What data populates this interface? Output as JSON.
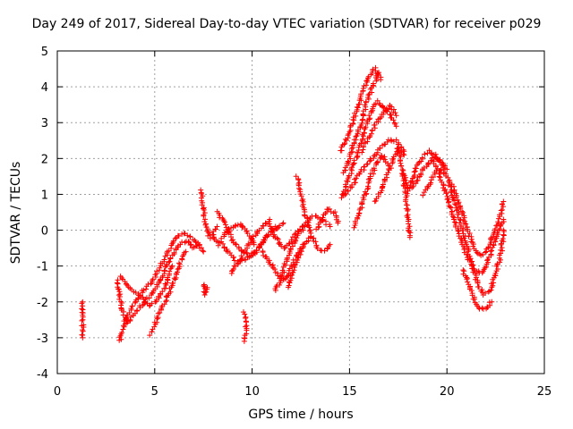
{
  "chart_data": {
    "type": "scatter",
    "title": "Day 249 of 2017, Sidereal Day-to-day VTEC variation (SDTVAR) for receiver p029",
    "xlabel": "GPS time / hours",
    "ylabel": "SDTVAR / TECUs",
    "xlim": [
      0,
      25
    ],
    "ylim": [
      -4,
      5
    ],
    "xticks": [
      0,
      5,
      10,
      15,
      20,
      25
    ],
    "yticks": [
      -4,
      -3,
      -2,
      -1,
      0,
      1,
      2,
      3,
      4,
      5
    ],
    "xtick_labels": [
      "0",
      "5",
      "10",
      "15",
      "20",
      "25"
    ],
    "ytick_labels": [
      "-4",
      "-3",
      "-2",
      "-1",
      "0",
      "1",
      "2",
      "3",
      "4",
      "5"
    ],
    "grid": true,
    "marker": "+",
    "color": "#ff0000",
    "series": [
      {
        "name": "p029",
        "tracks": [
          [
            [
              1.3,
              -2.0
            ],
            [
              1.3,
              -2.5
            ],
            [
              1.3,
              -3.0
            ]
          ],
          [
            [
              3.1,
              -1.4
            ],
            [
              3.3,
              -2.2
            ],
            [
              3.6,
              -2.6
            ],
            [
              4.0,
              -2.3
            ],
            [
              4.5,
              -2.0
            ],
            [
              5.0,
              -1.7
            ],
            [
              5.4,
              -1.3
            ],
            [
              5.8,
              -0.8
            ],
            [
              6.2,
              -0.4
            ],
            [
              6.7,
              -0.3
            ],
            [
              7.0,
              -0.5
            ],
            [
              7.3,
              -0.4
            ]
          ],
          [
            [
              3.2,
              -3.1
            ],
            [
              3.5,
              -2.5
            ],
            [
              3.9,
              -2.1
            ],
            [
              4.4,
              -1.7
            ],
            [
              4.9,
              -1.4
            ],
            [
              5.3,
              -1.0
            ],
            [
              5.7,
              -0.6
            ],
            [
              6.1,
              -0.2
            ],
            [
              6.6,
              -0.1
            ],
            [
              7.1,
              -0.3
            ],
            [
              7.5,
              -0.6
            ]
          ],
          [
            [
              3.3,
              -1.3
            ],
            [
              3.7,
              -1.6
            ],
            [
              4.2,
              -1.8
            ],
            [
              4.7,
              -2.1
            ],
            [
              5.1,
              -2.0
            ],
            [
              5.5,
              -1.6
            ],
            [
              5.9,
              -1.0
            ]
          ],
          [
            [
              4.8,
              -2.9
            ],
            [
              5.2,
              -2.4
            ],
            [
              5.6,
              -1.9
            ],
            [
              6.0,
              -1.4
            ],
            [
              6.3,
              -0.9
            ],
            [
              6.6,
              -0.6
            ]
          ],
          [
            [
              7.4,
              1.1
            ],
            [
              7.5,
              0.6
            ],
            [
              7.6,
              0.2
            ],
            [
              7.8,
              -0.2
            ],
            [
              8.0,
              -0.1
            ],
            [
              8.2,
              0.1
            ]
          ],
          [
            [
              7.5,
              -1.5
            ],
            [
              7.6,
              -1.8
            ],
            [
              7.7,
              -1.6
            ]
          ],
          [
            [
              8.0,
              -0.2
            ],
            [
              8.3,
              -0.4
            ],
            [
              8.6,
              -0.1
            ],
            [
              9.0,
              0.1
            ],
            [
              9.4,
              0.2
            ],
            [
              9.8,
              -0.1
            ],
            [
              10.1,
              -0.4
            ]
          ],
          [
            [
              8.2,
              0.5
            ],
            [
              8.6,
              0.2
            ],
            [
              9.0,
              -0.3
            ],
            [
              9.5,
              -0.6
            ],
            [
              9.9,
              -0.7
            ],
            [
              10.3,
              -0.5
            ],
            [
              10.7,
              -0.2
            ],
            [
              11.2,
              0.1
            ]
          ],
          [
            [
              8.5,
              -0.4
            ],
            [
              8.9,
              -0.7
            ],
            [
              9.3,
              -0.9
            ],
            [
              9.7,
              -0.8
            ],
            [
              10.2,
              -0.6
            ],
            [
              10.6,
              -0.3
            ],
            [
              11.1,
              0.0
            ],
            [
              11.6,
              0.2
            ]
          ],
          [
            [
              8.9,
              -1.2
            ],
            [
              9.3,
              -0.9
            ],
            [
              9.7,
              -0.5
            ],
            [
              10.1,
              -0.2
            ],
            [
              10.5,
              0.1
            ],
            [
              10.9,
              0.3
            ]
          ],
          [
            [
              9.6,
              -2.3
            ],
            [
              9.7,
              -2.7
            ],
            [
              9.6,
              -3.1
            ]
          ],
          [
            [
              10.5,
              -0.6
            ],
            [
              10.9,
              -0.9
            ],
            [
              11.3,
              -1.2
            ],
            [
              11.6,
              -1.4
            ],
            [
              11.9,
              -1.2
            ],
            [
              12.2,
              -0.8
            ],
            [
              12.6,
              -0.4
            ]
          ],
          [
            [
              10.8,
              0.2
            ],
            [
              11.2,
              -0.2
            ],
            [
              11.6,
              -0.5
            ],
            [
              12.0,
              -0.3
            ],
            [
              12.4,
              0.0
            ],
            [
              12.8,
              0.2
            ],
            [
              13.2,
              0.4
            ],
            [
              13.6,
              0.3
            ],
            [
              14.0,
              0.1
            ]
          ],
          [
            [
              11.2,
              -1.7
            ],
            [
              11.5,
              -1.3
            ],
            [
              11.8,
              -0.8
            ],
            [
              12.1,
              -0.4
            ],
            [
              12.4,
              -0.1
            ],
            [
              12.7,
              0.1
            ]
          ],
          [
            [
              11.8,
              -1.6
            ],
            [
              12.1,
              -1.2
            ],
            [
              12.4,
              -0.7
            ],
            [
              12.7,
              -0.4
            ],
            [
              13.0,
              -0.2
            ]
          ],
          [
            [
              12.3,
              1.5
            ],
            [
              12.5,
              1.0
            ],
            [
              12.7,
              0.5
            ],
            [
              12.9,
              0.1
            ],
            [
              13.1,
              -0.2
            ],
            [
              13.4,
              -0.5
            ],
            [
              13.7,
              -0.6
            ],
            [
              14.0,
              -0.4
            ]
          ],
          [
            [
              13.3,
              0.0
            ],
            [
              13.6,
              0.3
            ],
            [
              13.9,
              0.6
            ],
            [
              14.2,
              0.5
            ],
            [
              14.4,
              0.2
            ]
          ],
          [
            [
              14.5,
              2.2
            ],
            [
              14.8,
              2.5
            ],
            [
              15.1,
              2.9
            ],
            [
              15.4,
              3.4
            ],
            [
              15.7,
              3.9
            ],
            [
              16.0,
              4.3
            ],
            [
              16.3,
              4.5
            ],
            [
              16.6,
              4.2
            ]
          ],
          [
            [
              14.6,
              0.9
            ],
            [
              14.9,
              1.4
            ],
            [
              15.2,
              1.8
            ],
            [
              15.5,
              2.3
            ],
            [
              15.8,
              2.8
            ],
            [
              16.1,
              3.3
            ],
            [
              16.4,
              3.6
            ],
            [
              16.8,
              3.4
            ],
            [
              17.1,
              3.2
            ],
            [
              17.4,
              2.9
            ]
          ],
          [
            [
              14.7,
              1.6
            ],
            [
              15.0,
              2.0
            ],
            [
              15.3,
              2.5
            ],
            [
              15.6,
              3.0
            ],
            [
              15.9,
              3.6
            ],
            [
              16.2,
              4.0
            ],
            [
              16.5,
              4.4
            ]
          ],
          [
            [
              14.8,
              1.0
            ],
            [
              15.1,
              1.2
            ],
            [
              15.4,
              1.5
            ],
            [
              15.7,
              1.7
            ],
            [
              16.0,
              1.9
            ],
            [
              16.3,
              2.1
            ],
            [
              16.6,
              2.3
            ],
            [
              17.0,
              2.5
            ],
            [
              17.4,
              2.5
            ],
            [
              17.8,
              2.2
            ]
          ],
          [
            [
              15.2,
              0.1
            ],
            [
              15.5,
              0.5
            ],
            [
              15.8,
              1.0
            ],
            [
              16.1,
              1.5
            ],
            [
              16.4,
              1.9
            ],
            [
              16.7,
              2.1
            ],
            [
              17.0,
              1.8
            ]
          ],
          [
            [
              15.6,
              2.2
            ],
            [
              15.9,
              2.5
            ],
            [
              16.2,
              2.8
            ],
            [
              16.5,
              3.1
            ],
            [
              16.8,
              3.3
            ],
            [
              17.1,
              3.5
            ],
            [
              17.4,
              3.2
            ]
          ],
          [
            [
              16.3,
              0.8
            ],
            [
              16.6,
              1.1
            ],
            [
              16.9,
              1.5
            ],
            [
              17.2,
              1.9
            ],
            [
              17.5,
              2.3
            ],
            [
              17.8,
              2.1
            ]
          ],
          [
            [
              17.5,
              2.3
            ],
            [
              17.8,
              1.5
            ],
            [
              18.0,
              1.1
            ],
            [
              18.2,
              1.4
            ],
            [
              18.5,
              1.8
            ],
            [
              18.8,
              2.1
            ],
            [
              19.1,
              2.2
            ],
            [
              19.5,
              2.0
            ],
            [
              19.9,
              1.8
            ]
          ],
          [
            [
              17.7,
              1.6
            ],
            [
              17.9,
              1.0
            ],
            [
              18.0,
              0.3
            ],
            [
              18.1,
              -0.2
            ]
          ],
          [
            [
              18.2,
              1.2
            ],
            [
              18.5,
              1.4
            ],
            [
              18.8,
              1.7
            ],
            [
              19.1,
              1.9
            ],
            [
              19.4,
              2.1
            ],
            [
              19.7,
              1.9
            ],
            [
              20.0,
              1.7
            ]
          ],
          [
            [
              18.8,
              1.0
            ],
            [
              19.1,
              1.3
            ],
            [
              19.4,
              1.6
            ],
            [
              19.7,
              1.7
            ],
            [
              20.0,
              1.5
            ],
            [
              20.3,
              1.2
            ],
            [
              20.6,
              0.8
            ],
            [
              20.9,
              0.3
            ],
            [
              21.2,
              -0.2
            ],
            [
              21.5,
              -0.6
            ],
            [
              21.8,
              -0.7
            ],
            [
              22.1,
              -0.5
            ],
            [
              22.4,
              -0.1
            ],
            [
              22.7,
              0.3
            ],
            [
              22.9,
              0.8
            ]
          ],
          [
            [
              19.3,
              1.9
            ],
            [
              19.6,
              1.6
            ],
            [
              19.9,
              1.1
            ],
            [
              20.2,
              0.6
            ],
            [
              20.5,
              0.1
            ],
            [
              20.8,
              -0.4
            ],
            [
              21.1,
              -0.8
            ],
            [
              21.4,
              -1.1
            ],
            [
              21.7,
              -1.2
            ],
            [
              22.0,
              -1.0
            ],
            [
              22.3,
              -0.6
            ],
            [
              22.6,
              -0.1
            ],
            [
              22.9,
              0.3
            ]
          ],
          [
            [
              20.1,
              1.3
            ],
            [
              20.4,
              0.8
            ],
            [
              20.7,
              0.2
            ],
            [
              21.0,
              -0.4
            ],
            [
              21.3,
              -1.0
            ],
            [
              21.6,
              -1.5
            ],
            [
              21.9,
              -1.8
            ],
            [
              22.2,
              -1.7
            ],
            [
              22.5,
              -1.2
            ],
            [
              22.8,
              -0.6
            ],
            [
              22.9,
              0.0
            ]
          ],
          [
            [
              20.8,
              -1.1
            ],
            [
              21.1,
              -1.5
            ],
            [
              21.4,
              -1.9
            ],
            [
              21.7,
              -2.2
            ],
            [
              22.0,
              -2.2
            ],
            [
              22.3,
              -2.0
            ]
          ]
        ]
      }
    ]
  }
}
